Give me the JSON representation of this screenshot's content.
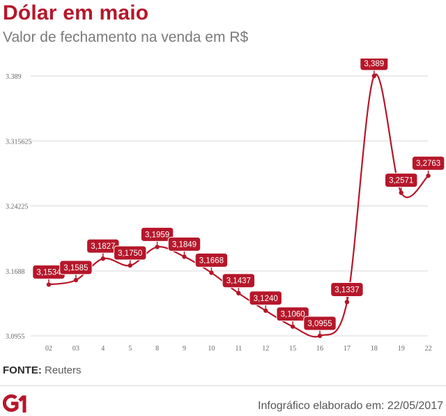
{
  "title": "Dólar em maio",
  "subtitle": "Valor de fechamento na venda em R$",
  "source": {
    "label": "FONTE:",
    "value": "Reuters"
  },
  "logo": {
    "text": "G1",
    "color": "#b5172a"
  },
  "credit": "Infográfico elaborado em: 22/05/2017",
  "colors": {
    "accent": "#b5172a",
    "grid": "#d9d9d9",
    "tick": "#666666"
  },
  "chart_data": {
    "type": "line",
    "title": "Dólar em maio",
    "subtitle": "Valor de fechamento na venda em R$",
    "xlabel": "",
    "ylabel": "",
    "categories": [
      "02",
      "03",
      "4",
      "5",
      "8",
      "9",
      "10",
      "11",
      "12",
      "15",
      "16",
      "17",
      "18",
      "19",
      "22"
    ],
    "series": [
      {
        "values": [
          3.1534,
          3.1585,
          3.1827,
          3.175,
          3.1959,
          3.1849,
          3.1668,
          3.1437,
          3.124,
          3.106,
          3.0955,
          3.1337,
          3.389,
          3.2571,
          3.2763
        ],
        "labels": [
          "3,1534",
          "3,1585",
          "3,1827",
          "3,1750",
          "3,1959",
          "3,1849",
          "3,1668",
          "3,1437",
          "3,1240",
          "3,1060",
          "3,0955",
          "3,1337",
          "3,389",
          "3,2571",
          "3,2763"
        ]
      }
    ],
    "yticks": [
      3.0955,
      3.1688,
      3.24225,
      3.315625,
      3.389
    ],
    "ytick_labels": [
      "3.0955",
      "3.1688",
      "3.24225",
      "3.315625",
      "3.389"
    ],
    "ylim": [
      3.0955,
      3.389
    ],
    "grid": true,
    "legend": "none"
  }
}
